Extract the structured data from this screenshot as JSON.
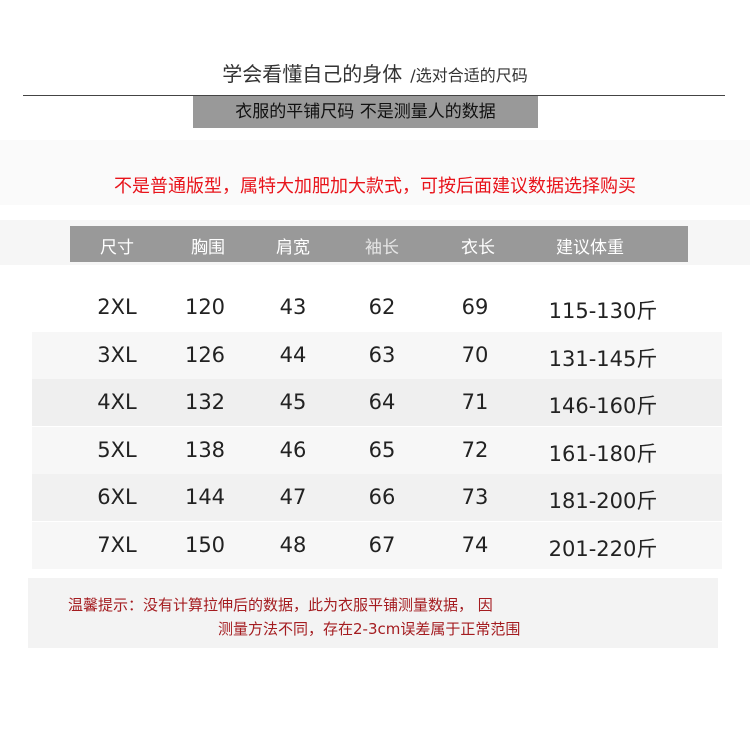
{
  "title": {
    "main": "学会看懂自己的身体",
    "sub": "/选对合适的尺码"
  },
  "banner": "衣服的平铺尺码  不是测量人的数据",
  "notice": "不是普通版型，属特大加肥加大款式，可按后面建议数据选择购买",
  "colors": {
    "header_bg": "#999999",
    "notice_red": "#e8141b",
    "tip_red": "#a41c20"
  },
  "table": {
    "headers": [
      "尺寸",
      "胸围",
      "肩宽",
      "袖长",
      "衣长",
      "建议体重"
    ],
    "rows": [
      [
        "2XL",
        "120",
        "43",
        "62",
        "69",
        "115-130斤"
      ],
      [
        "3XL",
        "126",
        "44",
        "63",
        "70",
        "131-145斤"
      ],
      [
        "4XL",
        "132",
        "45",
        "64",
        "71",
        "146-160斤"
      ],
      [
        "5XL",
        "138",
        "46",
        "65",
        "72",
        "161-180斤"
      ],
      [
        "6XL",
        "144",
        "47",
        "66",
        "73",
        "181-200斤"
      ],
      [
        "7XL",
        "150",
        "48",
        "67",
        "74",
        "201-220斤"
      ]
    ]
  },
  "tip": {
    "line1": "温馨提示：没有计算拉伸后的数据，此为衣服平铺测量数据， 因",
    "line2": "测量方法不同，存在2-3cm误差属于正常范围"
  }
}
